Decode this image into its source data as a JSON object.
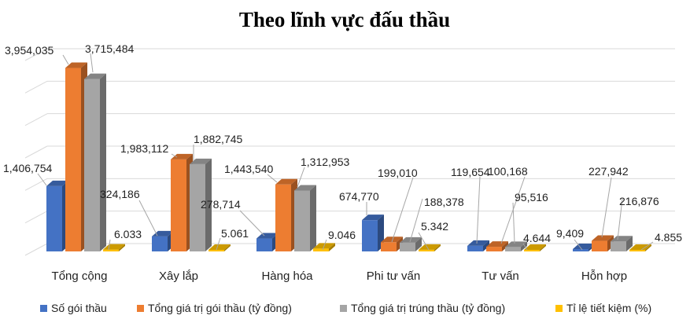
{
  "chart_data": {
    "type": "bar",
    "title": "Theo lĩnh vực đấu thầu",
    "categories": [
      "Tổng cộng",
      "Xây lắp",
      "Hàng hóa",
      "Phi tư vấn",
      "Tư vấn",
      "Hỗn hợp"
    ],
    "series": [
      {
        "name": "Số gói thầu",
        "color": "#4472C4",
        "values": [
          1406754,
          324186,
          278714,
          674770,
          119654,
          9409
        ],
        "labels": [
          "1,406,754",
          "324,186",
          "278,714",
          "674,770",
          "119,654",
          "9,409"
        ]
      },
      {
        "name": "Tổng giá trị gói thầu (tỷ đồng)",
        "color": "#ED7D31",
        "values": [
          3954035,
          1983112,
          1443540,
          199010,
          100168,
          227942
        ],
        "labels": [
          "3,954,035",
          "1,983,112",
          "1,443,540",
          "199,010",
          "100,168",
          "227,942"
        ]
      },
      {
        "name": "Tổng giá trị trúng thầu (tỷ đồng)",
        "color": "#A5A5A5",
        "values": [
          3715484,
          1882745,
          1312953,
          188378,
          95516,
          216876
        ],
        "labels": [
          "3,715,484",
          "1,882,745",
          "1,312,953",
          "188,378",
          "95,516",
          "216,876"
        ]
      },
      {
        "name": "Tỉ lệ tiết kiệm (%)",
        "color": "#FFC000",
        "values": [
          6.033,
          5.061,
          9.046,
          5.342,
          4.644,
          4.855
        ],
        "labels": [
          "6.033",
          "5.061",
          "9.046",
          "5.342",
          "4.644",
          "4.855"
        ]
      }
    ],
    "ylim": [
      0,
      4200000
    ],
    "grid": true,
    "legend": "bottom"
  }
}
